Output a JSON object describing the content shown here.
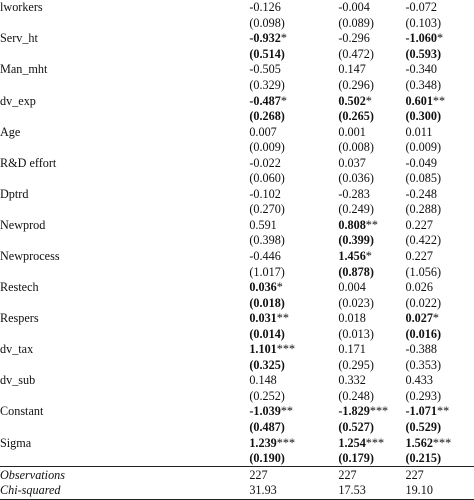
{
  "rows": [
    {
      "label": "lworkers",
      "vals": [
        {
          "v": "-0.126",
          "s": ""
        },
        {
          "v": "-0.004",
          "s": ""
        },
        {
          "v": "-0.072",
          "s": ""
        }
      ]
    },
    {
      "label": "",
      "vals": [
        {
          "v": "(0.098)",
          "s": ""
        },
        {
          "v": "(0.089)",
          "s": ""
        },
        {
          "v": "(0.103)",
          "s": ""
        }
      ]
    },
    {
      "label": "Serv_ht",
      "vals": [
        {
          "v": "-0.932",
          "s": "*",
          "b": true
        },
        {
          "v": "-0.296",
          "s": ""
        },
        {
          "v": "-1.060",
          "s": "*",
          "b": true
        }
      ]
    },
    {
      "label": "",
      "vals": [
        {
          "v": "(0.514)",
          "s": "",
          "b": true
        },
        {
          "v": "(0.472)",
          "s": ""
        },
        {
          "v": "(0.593)",
          "s": "",
          "b": true
        }
      ]
    },
    {
      "label": "Man_mht",
      "vals": [
        {
          "v": "-0.505",
          "s": ""
        },
        {
          "v": "0.147",
          "s": ""
        },
        {
          "v": "-0.340",
          "s": ""
        }
      ]
    },
    {
      "label": "",
      "vals": [
        {
          "v": "(0.329)",
          "s": ""
        },
        {
          "v": "(0.296)",
          "s": ""
        },
        {
          "v": "(0.348)",
          "s": ""
        }
      ]
    },
    {
      "label": "dv_exp",
      "vals": [
        {
          "v": "-0.487",
          "s": "*",
          "b": true
        },
        {
          "v": "0.502",
          "s": "*",
          "b": true
        },
        {
          "v": "0.601",
          "s": "**",
          "b": true
        }
      ]
    },
    {
      "label": "",
      "vals": [
        {
          "v": "(0.268)",
          "s": "",
          "b": true
        },
        {
          "v": "(0.265)",
          "s": "",
          "b": true
        },
        {
          "v": "(0.300)",
          "s": "",
          "b": true
        }
      ]
    },
    {
      "label": "Age",
      "vals": [
        {
          "v": "0.007",
          "s": ""
        },
        {
          "v": "0.001",
          "s": ""
        },
        {
          "v": "0.011",
          "s": ""
        }
      ]
    },
    {
      "label": "",
      "vals": [
        {
          "v": "(0.009)",
          "s": ""
        },
        {
          "v": "(0.008)",
          "s": ""
        },
        {
          "v": "(0.009)",
          "s": ""
        }
      ]
    },
    {
      "label": "R&D effort",
      "vals": [
        {
          "v": "-0.022",
          "s": ""
        },
        {
          "v": "0.037",
          "s": ""
        },
        {
          "v": "-0.049",
          "s": ""
        }
      ]
    },
    {
      "label": "",
      "vals": [
        {
          "v": "(0.060)",
          "s": ""
        },
        {
          "v": "(0.036)",
          "s": ""
        },
        {
          "v": "(0.085)",
          "s": ""
        }
      ]
    },
    {
      "label": "Dptrd",
      "vals": [
        {
          "v": "-0.102",
          "s": ""
        },
        {
          "v": "-0.283",
          "s": ""
        },
        {
          "v": "-0.248",
          "s": ""
        }
      ]
    },
    {
      "label": "",
      "vals": [
        {
          "v": "(0.270)",
          "s": ""
        },
        {
          "v": "(0.249)",
          "s": ""
        },
        {
          "v": "(0.288)",
          "s": ""
        }
      ]
    },
    {
      "label": "Newprod",
      "vals": [
        {
          "v": "0.591",
          "s": ""
        },
        {
          "v": "0.808",
          "s": "**",
          "b": true
        },
        {
          "v": "0.227",
          "s": ""
        }
      ]
    },
    {
      "label": "",
      "vals": [
        {
          "v": "(0.398)",
          "s": ""
        },
        {
          "v": "(0.399)",
          "s": "",
          "b": true
        },
        {
          "v": "(0.422)",
          "s": ""
        }
      ]
    },
    {
      "label": "Newprocess",
      "vals": [
        {
          "v": "-0.446",
          "s": ""
        },
        {
          "v": "1.456",
          "s": "*",
          "b": true
        },
        {
          "v": "0.227",
          "s": ""
        }
      ]
    },
    {
      "label": "",
      "vals": [
        {
          "v": "(1.017)",
          "s": ""
        },
        {
          "v": "(0.878)",
          "s": "",
          "b": true
        },
        {
          "v": "(1.056)",
          "s": ""
        }
      ]
    },
    {
      "label": "Restech",
      "vals": [
        {
          "v": "0.036",
          "s": "*",
          "b": true
        },
        {
          "v": "0.004",
          "s": ""
        },
        {
          "v": "0.026",
          "s": ""
        }
      ]
    },
    {
      "label": "",
      "vals": [
        {
          "v": "(0.018)",
          "s": "",
          "b": true
        },
        {
          "v": "(0.023)",
          "s": ""
        },
        {
          "v": "(0.022)",
          "s": ""
        }
      ]
    },
    {
      "label": "Respers",
      "vals": [
        {
          "v": "0.031",
          "s": "**",
          "b": true
        },
        {
          "v": "0.018",
          "s": ""
        },
        {
          "v": "0.027",
          "s": "*",
          "b": true
        }
      ]
    },
    {
      "label": "",
      "vals": [
        {
          "v": "(0.014)",
          "s": "",
          "b": true
        },
        {
          "v": "(0.013)",
          "s": ""
        },
        {
          "v": "(0.016)",
          "s": "",
          "b": true
        }
      ]
    },
    {
      "label": "dv_tax",
      "vals": [
        {
          "v": "1.101",
          "s": "***",
          "b": true
        },
        {
          "v": "0.171",
          "s": ""
        },
        {
          "v": "-0.388",
          "s": ""
        }
      ]
    },
    {
      "label": "",
      "vals": [
        {
          "v": "(0.325)",
          "s": "",
          "b": true
        },
        {
          "v": "(0.295)",
          "s": ""
        },
        {
          "v": "(0.353)",
          "s": ""
        }
      ]
    },
    {
      "label": "dv_sub",
      "vals": [
        {
          "v": "0.148",
          "s": ""
        },
        {
          "v": "0.332",
          "s": ""
        },
        {
          "v": "0.433",
          "s": ""
        }
      ]
    },
    {
      "label": "",
      "vals": [
        {
          "v": "(0.252)",
          "s": ""
        },
        {
          "v": "(0.248)",
          "s": ""
        },
        {
          "v": "(0.293)",
          "s": ""
        }
      ]
    },
    {
      "label": "Constant",
      "vals": [
        {
          "v": "-1.039",
          "s": "**",
          "b": true
        },
        {
          "v": "-1.829",
          "s": "***",
          "b": true
        },
        {
          "v": "-1.071",
          "s": "**",
          "b": true
        }
      ]
    },
    {
      "label": "",
      "vals": [
        {
          "v": "(0.487)",
          "s": "",
          "b": true
        },
        {
          "v": "(0.527)",
          "s": "",
          "b": true
        },
        {
          "v": "(0.529)",
          "s": "",
          "b": true
        }
      ]
    },
    {
      "label": "Sigma",
      "vals": [
        {
          "v": "1.239",
          "s": "***",
          "b": true
        },
        {
          "v": "1.254",
          "s": "***",
          "b": true
        },
        {
          "v": "1.562",
          "s": "***",
          "b": true
        }
      ]
    },
    {
      "label": "",
      "vals": [
        {
          "v": "(0.190)",
          "s": "",
          "b": true
        },
        {
          "v": "(0.179)",
          "s": "",
          "b": true
        },
        {
          "v": "(0.215)",
          "s": "",
          "b": true
        }
      ]
    }
  ],
  "footer": [
    {
      "label": "Observations",
      "vals": [
        "227",
        "227",
        "227"
      ]
    },
    {
      "label": "Chi-squared",
      "vals": [
        "31.93",
        "17.53",
        "19.10"
      ]
    }
  ]
}
